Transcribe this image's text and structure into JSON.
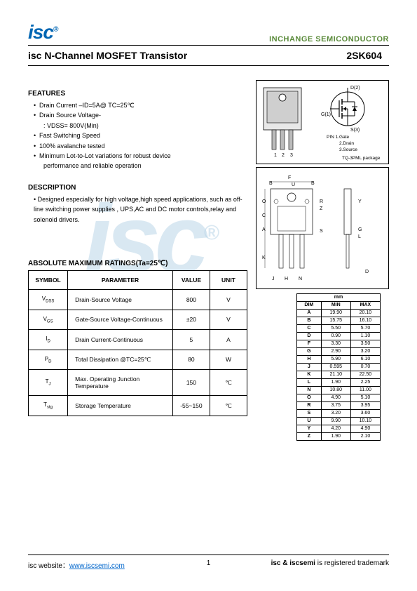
{
  "header": {
    "logo": "isc",
    "company": "INCHANGE SEMICONDUCTOR"
  },
  "title": {
    "left": "isc N-Channel MOSFET Transistor",
    "right": "2SK604"
  },
  "features": {
    "heading": "FEATURES",
    "items": [
      "Drain Current –ID=5A@ TC=25℃",
      "Drain Source Voltage-",
      ": VDSS= 800V(Min)",
      "Fast Switching Speed",
      "100% avalanche tested",
      "Minimum Lot-to-Lot variations for robust device",
      "performance and reliable operation"
    ]
  },
  "description": {
    "heading": "DESCRIPTION",
    "text": "Designed especially for high voltage,high speed applications, such as off-line switching power supplies , UPS,AC and DC motor controls,relay and solenoid drivers."
  },
  "ratings": {
    "heading": "ABSOLUTE MAXIMUM RATINGS(Ta=25℃)",
    "columns": [
      "SYMBOL",
      "PARAMETER",
      "VALUE",
      "UNIT"
    ],
    "rows": [
      {
        "symbol": "VDSS",
        "param": "Drain-Source Voltage",
        "value": "800",
        "unit": "V"
      },
      {
        "symbol": "VGS",
        "param": "Gate-Source Voltage-Continuous",
        "value": "±20",
        "unit": "V"
      },
      {
        "symbol": "ID",
        "param": "Drain Current-Continuous",
        "value": "5",
        "unit": "A"
      },
      {
        "symbol": "PD",
        "param": "Total Dissipation @TC=25℃",
        "value": "80",
        "unit": "W"
      },
      {
        "symbol": "TJ",
        "param": "Max. Operating Junction Temperature",
        "value": "150",
        "unit": "℃"
      },
      {
        "symbol": "Tstg",
        "param": "Storage Temperature",
        "value": "-55~150",
        "unit": "℃"
      }
    ]
  },
  "package_diagram": {
    "pins": [
      {
        "n": "1",
        "label": "Gate"
      },
      {
        "n": "2",
        "label": "Drain"
      },
      {
        "n": "3",
        "label": "Source"
      }
    ],
    "schematic_labels": [
      "D(2)",
      "G(1)",
      "S(3)"
    ],
    "package": "TQ-3PML package"
  },
  "dimensions": {
    "unit": "mm",
    "columns": [
      "DIM",
      "MIN",
      "MAX"
    ],
    "rows": [
      {
        "dim": "A",
        "min": "19.90",
        "max": "20.10"
      },
      {
        "dim": "B",
        "min": "15.75",
        "max": "16.10"
      },
      {
        "dim": "C",
        "min": "5.50",
        "max": "5.70"
      },
      {
        "dim": "D",
        "min": "0.90",
        "max": "1.10"
      },
      {
        "dim": "F",
        "min": "3.30",
        "max": "3.50"
      },
      {
        "dim": "G",
        "min": "2.90",
        "max": "3.20"
      },
      {
        "dim": "H",
        "min": "5.90",
        "max": "6.10"
      },
      {
        "dim": "J",
        "min": "0.595",
        "max": "0.70"
      },
      {
        "dim": "K",
        "min": "21.10",
        "max": "22.50"
      },
      {
        "dim": "L",
        "min": "1.90",
        "max": "2.25"
      },
      {
        "dim": "N",
        "min": "10.80",
        "max": "11.00"
      },
      {
        "dim": "O",
        "min": "4.90",
        "max": "5.10"
      },
      {
        "dim": "R",
        "min": "3.75",
        "max": "3.95"
      },
      {
        "dim": "S",
        "min": "3.20",
        "max": "3.60"
      },
      {
        "dim": "U",
        "min": "9.90",
        "max": "10.10"
      },
      {
        "dim": "Y",
        "min": "4.20",
        "max": "4.90"
      },
      {
        "dim": "Z",
        "min": "1.90",
        "max": "2.10"
      }
    ]
  },
  "footer": {
    "left_label": "isc website：",
    "url": "www.iscsemi.com",
    "page": "1",
    "right_bold": "isc & iscsemi",
    "right_text": " is registered trademark"
  },
  "colors": {
    "logo": "#0066b3",
    "company": "#5a8a3a",
    "link": "#0066cc",
    "watermark": "rgba(180,210,230,0.5)"
  }
}
